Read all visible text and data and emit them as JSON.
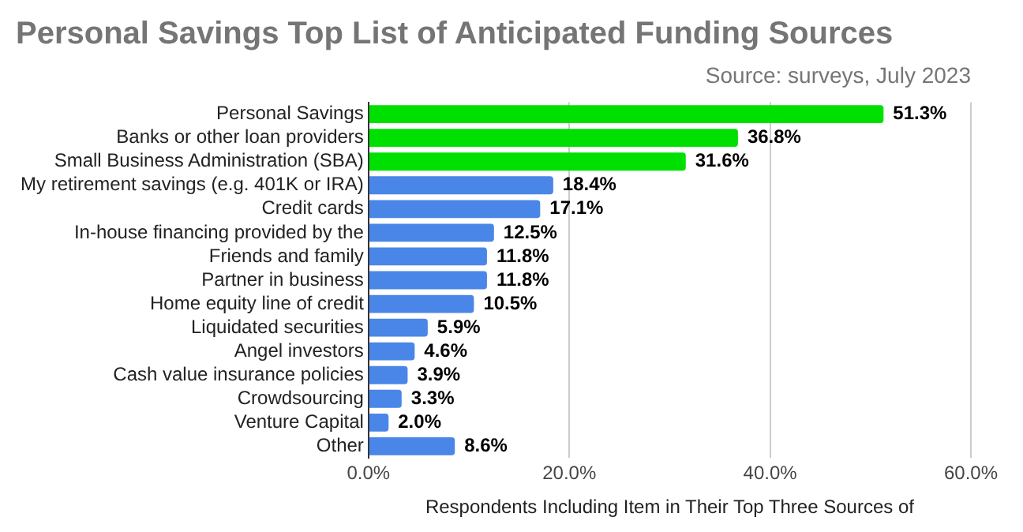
{
  "chart_data": {
    "type": "bar",
    "orientation": "horizontal",
    "title": "Personal Savings Top List of Anticipated Funding Sources",
    "subtitle": "Source: surveys, July 2023",
    "xlabel": "Respondents Including Item in Their Top Three Sources of",
    "categories": [
      "Personal Savings",
      "Banks or other loan providers",
      "Small Business Administration (SBA)",
      "My retirement savings (e.g. 401K or IRA)",
      "Credit cards",
      "In-house financing provided by the",
      "Friends and family",
      "Partner in business",
      "Home equity line of credit",
      "Liquidated securities",
      "Angel investors",
      "Cash value insurance policies",
      "Crowdsourcing",
      "Venture Capital",
      "Other"
    ],
    "values": [
      51.3,
      36.8,
      31.6,
      18.4,
      17.1,
      12.5,
      11.8,
      11.8,
      10.5,
      5.9,
      4.6,
      3.9,
      3.3,
      2.0,
      8.6
    ],
    "value_labels": [
      "51.3%",
      "36.8%",
      "31.6%",
      "18.4%",
      "17.1%",
      "12.5%",
      "11.8%",
      "11.8%",
      "10.5%",
      "5.9%",
      "4.6%",
      "3.9%",
      "3.3%",
      "2.0%",
      "8.6%"
    ],
    "colors": [
      "#00e000",
      "#00e000",
      "#00e000",
      "#4a86e8",
      "#4a86e8",
      "#4a86e8",
      "#4a86e8",
      "#4a86e8",
      "#4a86e8",
      "#4a86e8",
      "#4a86e8",
      "#4a86e8",
      "#4a86e8",
      "#4a86e8",
      "#4a86e8"
    ],
    "xlim": [
      0,
      60
    ],
    "xticks": [
      {
        "value": 0,
        "label": "0.0%"
      },
      {
        "value": 20,
        "label": "20.0%"
      },
      {
        "value": 40,
        "label": "40.0%"
      },
      {
        "value": 60,
        "label": "60.0%"
      }
    ],
    "grid": "x"
  }
}
